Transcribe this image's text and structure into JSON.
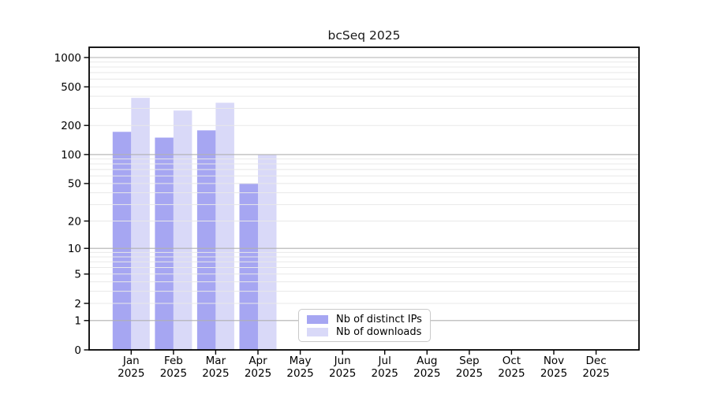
{
  "chart_data": {
    "type": "bar",
    "title": "bcSeq 2025",
    "year_label": "2025",
    "categories": [
      "Jan",
      "Feb",
      "Mar",
      "Apr",
      "May",
      "Jun",
      "Jul",
      "Aug",
      "Sep",
      "Oct",
      "Nov",
      "Dec"
    ],
    "series": [
      {
        "name": "Nb of distinct IPs",
        "color": "#a6a6f2",
        "values": [
          172,
          150,
          178,
          50,
          null,
          null,
          null,
          null,
          null,
          null,
          null,
          null
        ]
      },
      {
        "name": "Nb of downloads",
        "color": "#d9d9f8",
        "values": [
          385,
          285,
          343,
          100,
          null,
          null,
          null,
          null,
          null,
          null,
          null,
          null
        ]
      }
    ],
    "yscale": "log(value+1)",
    "y_ticks": [
      1000,
      500,
      200,
      100,
      50,
      20,
      10,
      5,
      2,
      1,
      0
    ],
    "ylim": [
      0,
      1250
    ],
    "grid": {
      "major_color": "#b0b0b0",
      "minor_color": "#e8e8e8",
      "grid_above_bars": true
    },
    "axis_color": "#000000",
    "tick_label_color": "#000000",
    "legend_position": "lower-center"
  }
}
